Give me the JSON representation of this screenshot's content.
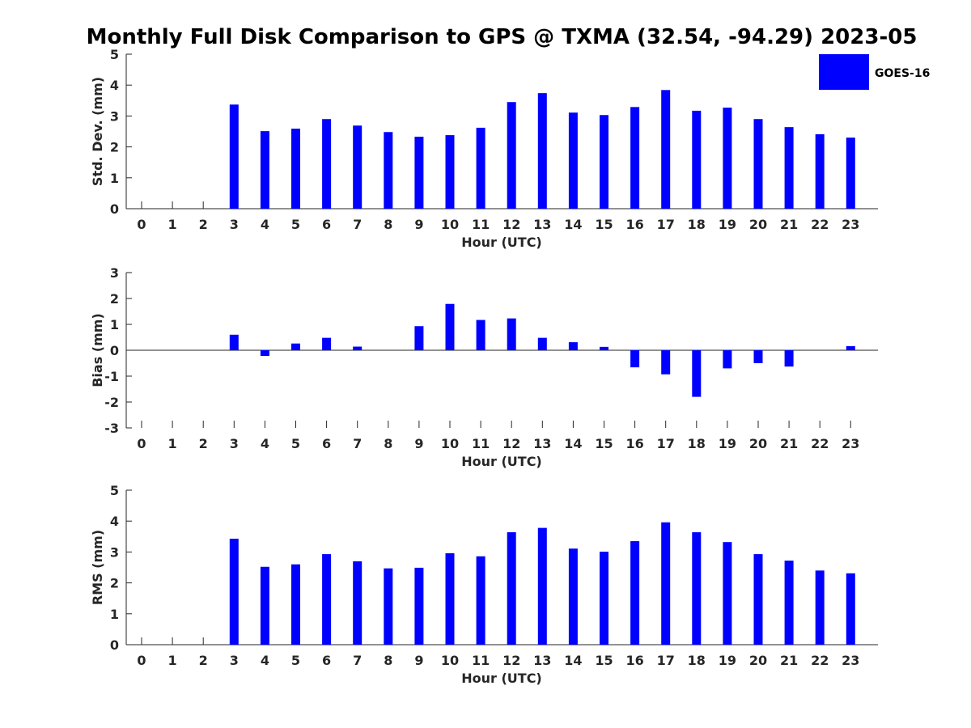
{
  "title": "Monthly Full Disk Comparison to GPS @ TXMA (32.54, -94.29) 2023-05",
  "legend": {
    "label": "GOES-16",
    "color": "#0000ff",
    "placement": "top-right"
  },
  "chart_data": [
    {
      "type": "bar",
      "ylabel": "Std. Dev. (mm)",
      "xlabel": "Hour (UTC)",
      "ylim": [
        0,
        5
      ],
      "yticks": [
        "0",
        "1",
        "2",
        "3",
        "4",
        "5"
      ],
      "categories": [
        "0",
        "1",
        "2",
        "3",
        "4",
        "5",
        "6",
        "7",
        "8",
        "9",
        "10",
        "11",
        "12",
        "13",
        "14",
        "15",
        "16",
        "17",
        "18",
        "19",
        "20",
        "21",
        "22",
        "23"
      ],
      "series": [
        {
          "name": "GOES-16",
          "color": "#0000ff",
          "values": [
            null,
            null,
            null,
            3.37,
            2.51,
            2.59,
            2.9,
            2.69,
            2.48,
            2.33,
            2.38,
            2.62,
            3.45,
            3.74,
            3.11,
            3.03,
            3.29,
            3.84,
            3.17,
            3.27,
            2.9,
            2.64,
            2.41,
            2.3
          ]
        }
      ]
    },
    {
      "type": "bar",
      "ylabel": "Bias (mm)",
      "xlabel": "Hour (UTC)",
      "ylim": [
        -3,
        3
      ],
      "yticks": [
        "-3",
        "-2",
        "-1",
        "0",
        "1",
        "2",
        "3"
      ],
      "categories": [
        "0",
        "1",
        "2",
        "3",
        "4",
        "5",
        "6",
        "7",
        "8",
        "9",
        "10",
        "11",
        "12",
        "13",
        "14",
        "15",
        "16",
        "17",
        "18",
        "19",
        "20",
        "21",
        "22",
        "23"
      ],
      "series": [
        {
          "name": "GOES-16",
          "color": "#0000ff",
          "values": [
            null,
            null,
            null,
            0.6,
            -0.22,
            0.26,
            0.48,
            0.14,
            0.0,
            0.93,
            1.79,
            1.17,
            1.23,
            0.48,
            0.31,
            0.13,
            -0.66,
            -0.93,
            -1.8,
            -0.7,
            -0.5,
            -0.63,
            0.0,
            0.16
          ]
        }
      ]
    },
    {
      "type": "bar",
      "ylabel": "RMS (mm)",
      "xlabel": "Hour (UTC)",
      "ylim": [
        0,
        5
      ],
      "yticks": [
        "0",
        "1",
        "2",
        "3",
        "4",
        "5"
      ],
      "categories": [
        "0",
        "1",
        "2",
        "3",
        "4",
        "5",
        "6",
        "7",
        "8",
        "9",
        "10",
        "11",
        "12",
        "13",
        "14",
        "15",
        "16",
        "17",
        "18",
        "19",
        "20",
        "21",
        "22",
        "23"
      ],
      "series": [
        {
          "name": "GOES-16",
          "color": "#0000ff",
          "values": [
            null,
            null,
            null,
            3.43,
            2.52,
            2.6,
            2.93,
            2.7,
            2.47,
            2.49,
            2.96,
            2.86,
            3.64,
            3.78,
            3.11,
            3.01,
            3.35,
            3.96,
            3.64,
            3.32,
            2.93,
            2.72,
            2.4,
            2.31
          ]
        }
      ]
    }
  ]
}
